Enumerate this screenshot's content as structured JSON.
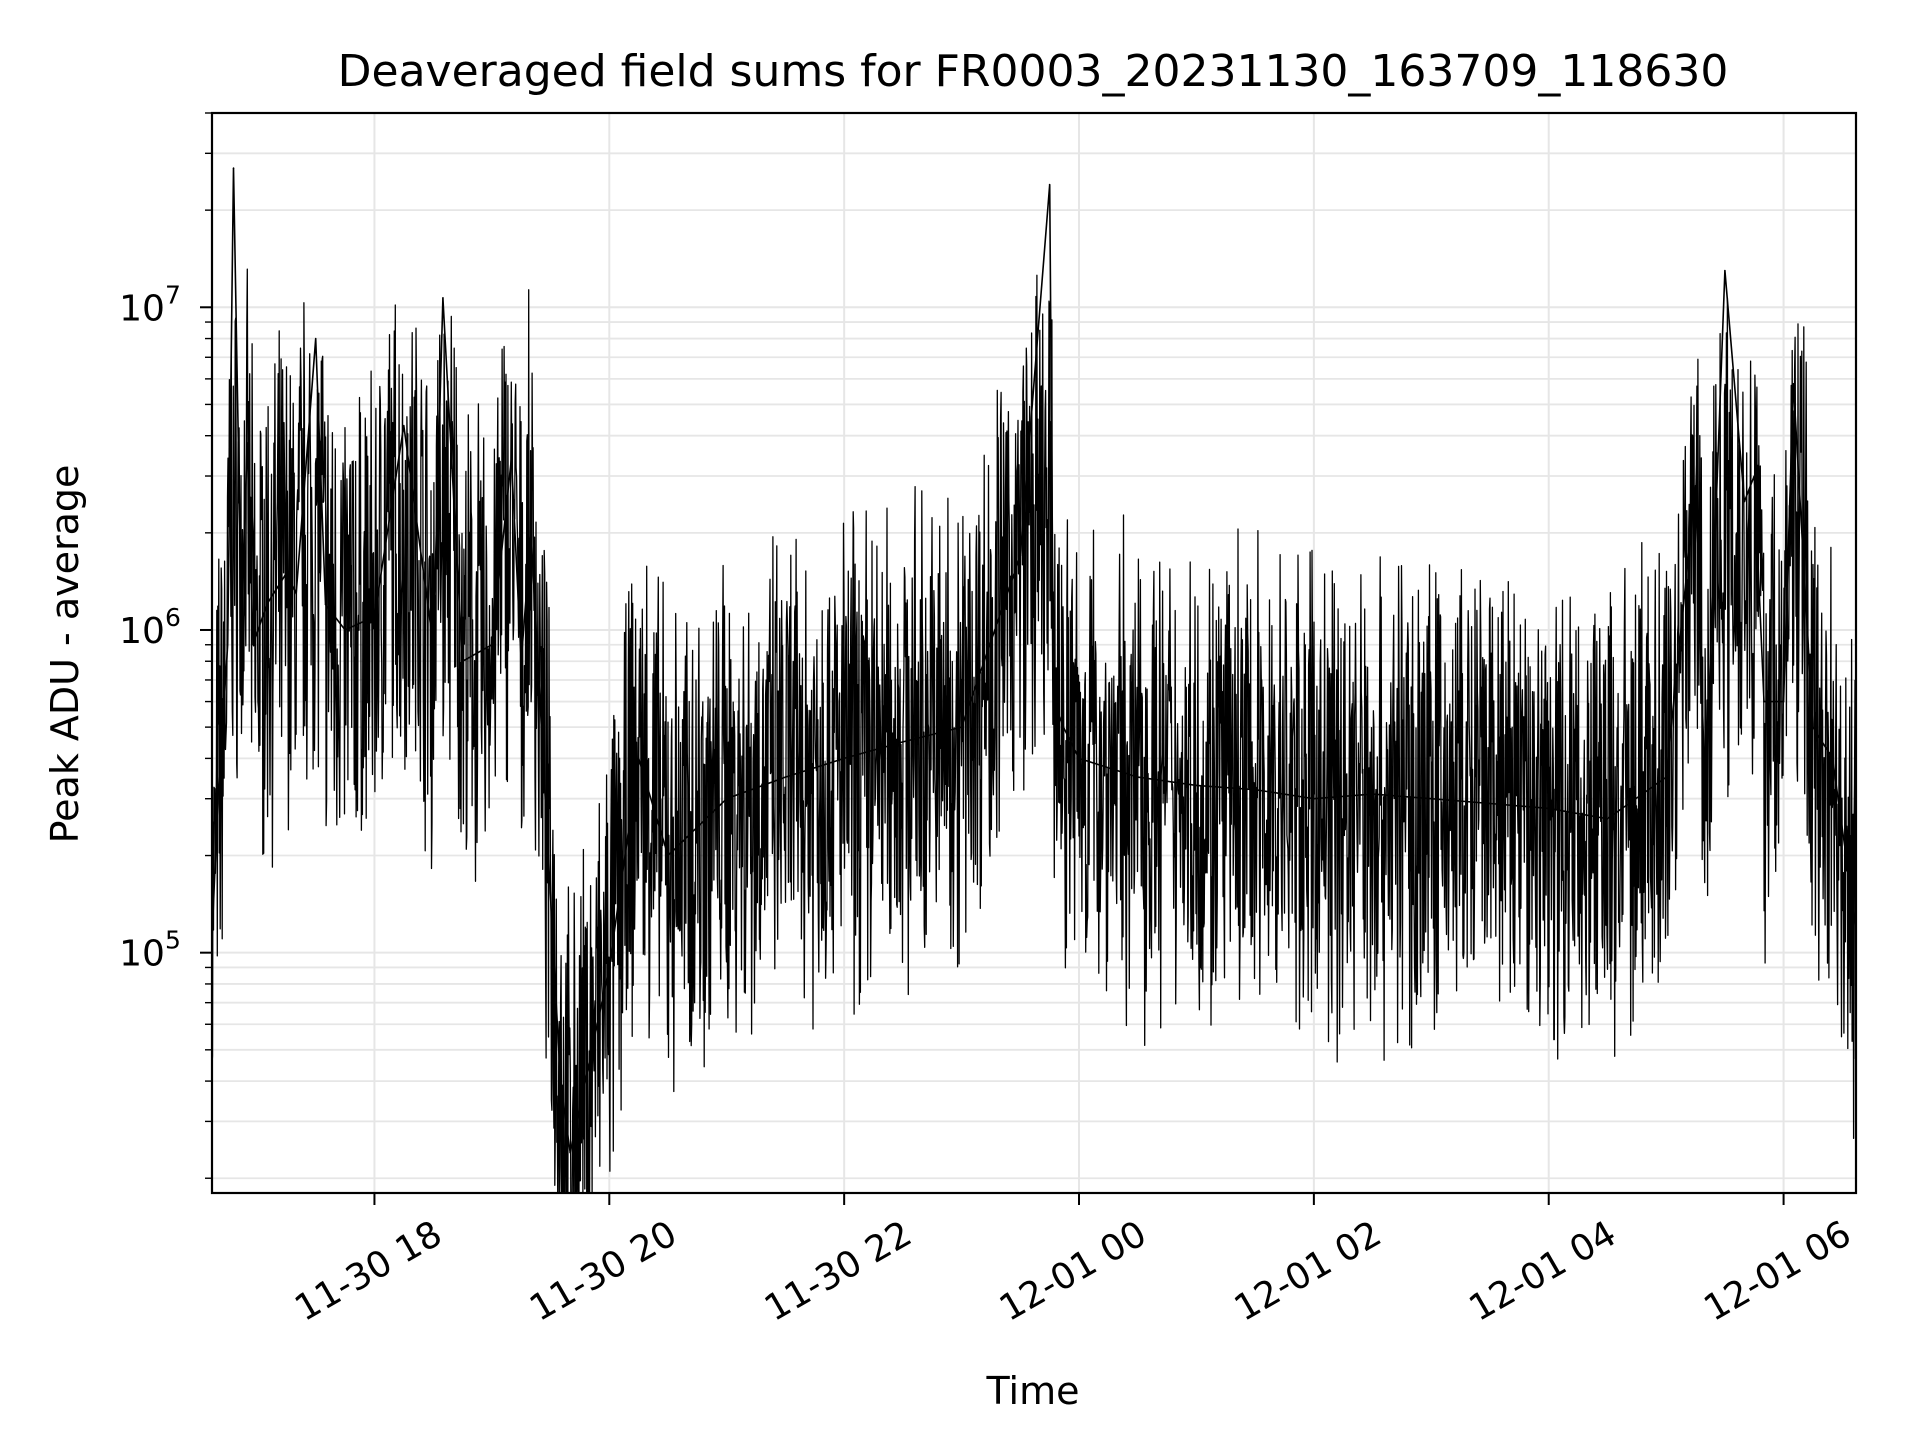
{
  "chart_data": {
    "type": "line",
    "title": "Deaveraged field sums for FR0003_20231130_163709_118630",
    "xlabel": "Time",
    "ylabel": "Peak ADU - average",
    "yscale": "log",
    "grid": true,
    "line_color": "#000000",
    "grid_color": "#e6e6e6",
    "xlim": [
      "2023-11-30T16:37",
      "2023-12-01T06:37"
    ],
    "ylim": [
      18000,
      40000000
    ],
    "xticks": [
      {
        "value": "2023-11-30T18:00",
        "label": "11-30 18"
      },
      {
        "value": "2023-11-30T20:00",
        "label": "11-30 20"
      },
      {
        "value": "2023-11-30T22:00",
        "label": "11-30 22"
      },
      {
        "value": "2023-12-01T00:00",
        "label": "12-01 00"
      },
      {
        "value": "2023-12-01T02:00",
        "label": "12-01 02"
      },
      {
        "value": "2023-12-01T04:00",
        "label": "12-01 04"
      },
      {
        "value": "2023-12-01T06:00",
        "label": "12-01 06"
      }
    ],
    "yticks": [
      {
        "value": 100000,
        "base": "10",
        "exp": "5"
      },
      {
        "value": 1000000,
        "base": "10",
        "exp": "6"
      },
      {
        "value": 10000000,
        "base": "10",
        "exp": "7"
      }
    ],
    "series": [
      {
        "x": [
          "2023-11-30T16:37",
          "2023-11-30T16:40",
          "2023-11-30T16:45",
          "2023-11-30T16:48",
          "2023-11-30T16:52",
          "2023-11-30T16:55",
          "2023-11-30T16:58",
          "2023-11-30T17:05",
          "2023-11-30T17:15",
          "2023-11-30T17:20",
          "2023-11-30T17:30",
          "2023-11-30T17:35",
          "2023-11-30T17:45",
          "2023-11-30T18:00",
          "2023-11-30T18:15",
          "2023-11-30T18:30",
          "2023-11-30T18:35",
          "2023-11-30T18:45",
          "2023-11-30T19:00",
          "2023-11-30T19:10",
          "2023-11-30T19:15",
          "2023-11-30T19:20",
          "2023-11-30T19:35",
          "2023-11-30T19:40",
          "2023-11-30T20:00",
          "2023-11-30T20:15",
          "2023-11-30T20:30",
          "2023-11-30T21:00",
          "2023-11-30T21:30",
          "2023-11-30T22:00",
          "2023-11-30T22:30",
          "2023-11-30T23:00",
          "2023-11-30T23:30",
          "2023-11-30T23:45",
          "2023-11-30T23:47",
          "2023-11-30T23:52",
          "2023-12-01T00:00",
          "2023-12-01T00:30",
          "2023-12-01T01:00",
          "2023-12-01T01:30",
          "2023-12-01T02:00",
          "2023-12-01T02:30",
          "2023-12-01T03:00",
          "2023-12-01T03:30",
          "2023-12-01T04:00",
          "2023-12-01T04:30",
          "2023-12-01T05:00",
          "2023-12-01T05:15",
          "2023-12-01T05:20",
          "2023-12-01T05:30",
          "2023-12-01T05:40",
          "2023-12-01T05:45",
          "2023-12-01T05:50",
          "2023-12-01T06:00",
          "2023-12-01T06:05",
          "2023-12-01T06:15",
          "2023-12-01T06:25",
          "2023-12-01T06:37"
        ],
        "y": [
          110000,
          300000,
          900000,
          27000000,
          1100000,
          3800000,
          900000,
          1200000,
          1500000,
          1300000,
          8000000,
          1200000,
          1000000,
          1100000,
          4300000,
          900000,
          10700000,
          800000,
          900000,
          3400000,
          800000,
          2000000,
          40000,
          24000,
          90000,
          400000,
          200000,
          300000,
          350000,
          400000,
          450000,
          500000,
          1700000,
          24000000,
          600000,
          500000,
          400000,
          350000,
          330000,
          320000,
          300000,
          310000,
          300000,
          290000,
          280000,
          260000,
          350000,
          2800000,
          300000,
          13000000,
          2500000,
          3000000,
          600000,
          600000,
          5800000,
          500000,
          400000,
          120000
        ]
      }
    ]
  }
}
